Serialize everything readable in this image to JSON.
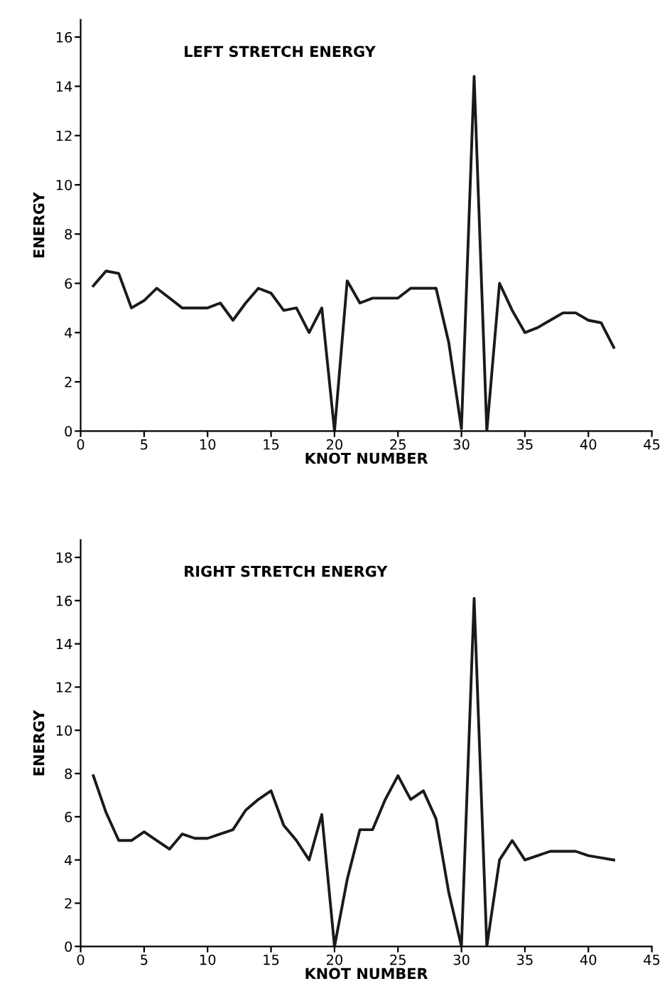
{
  "chart_data": [
    {
      "type": "line",
      "title": "LEFT STRETCH ENERGY",
      "xlabel": "KNOT NUMBER",
      "ylabel": "ENERGY",
      "x": [
        1,
        2,
        3,
        4,
        5,
        6,
        7,
        8,
        9,
        10,
        11,
        12,
        13,
        14,
        15,
        16,
        17,
        18,
        19,
        20,
        21,
        22,
        23,
        24,
        25,
        26,
        27,
        28,
        29,
        30,
        31,
        32,
        33,
        34,
        35,
        36,
        37,
        38,
        39,
        40,
        41,
        42
      ],
      "values": [
        5.9,
        6.5,
        6.4,
        5.0,
        5.3,
        5.8,
        5.4,
        5.0,
        5.0,
        5.0,
        5.2,
        4.5,
        5.2,
        5.8,
        5.6,
        4.9,
        5.0,
        4.0,
        5.0,
        0,
        6.1,
        5.2,
        5.4,
        5.4,
        5.4,
        5.8,
        5.8,
        5.8,
        3.6,
        0.1,
        14.4,
        0,
        6.0,
        4.9,
        4.0,
        4.2,
        4.5,
        4.8,
        4.8,
        4.5,
        4.4,
        3.4
      ],
      "color": "#1a1a1a",
      "xlim": [
        0,
        45
      ],
      "xticks": [
        0,
        5,
        10,
        15,
        20,
        25,
        30,
        35,
        40,
        45
      ],
      "ylim": [
        0,
        16.7
      ],
      "yticks": [
        0,
        2,
        4,
        6,
        8,
        10,
        12,
        14,
        16
      ],
      "grid": false
    },
    {
      "type": "line",
      "title": "RIGHT STRETCH ENERGY",
      "xlabel": "KNOT NUMBER",
      "ylabel": "ENERGY",
      "x": [
        1,
        2,
        3,
        4,
        5,
        6,
        7,
        8,
        9,
        10,
        11,
        12,
        13,
        14,
        15,
        16,
        17,
        18,
        19,
        20,
        21,
        22,
        23,
        24,
        25,
        26,
        27,
        28,
        29,
        30,
        31,
        32,
        33,
        34,
        35,
        36,
        37,
        38,
        39,
        40,
        41,
        42
      ],
      "values": [
        7.9,
        6.2,
        4.9,
        4.9,
        5.3,
        4.9,
        4.5,
        5.2,
        5.0,
        5.0,
        5.2,
        5.4,
        6.3,
        6.8,
        7.2,
        5.6,
        4.9,
        4.0,
        6.1,
        0,
        3.1,
        5.4,
        5.4,
        6.8,
        7.9,
        6.8,
        7.2,
        5.9,
        2.5,
        0,
        16.1,
        0,
        4.0,
        4.9,
        4.0,
        4.2,
        4.4,
        4.4,
        4.4,
        4.2,
        4.1,
        4.0
      ],
      "color": "#1a1a1a",
      "xlim": [
        0,
        45
      ],
      "xticks": [
        0,
        5,
        10,
        15,
        20,
        25,
        30,
        35,
        40,
        45
      ],
      "ylim": [
        0,
        18.8
      ],
      "yticks": [
        0,
        2,
        4,
        6,
        8,
        10,
        12,
        14,
        16,
        18
      ],
      "grid": false
    }
  ]
}
